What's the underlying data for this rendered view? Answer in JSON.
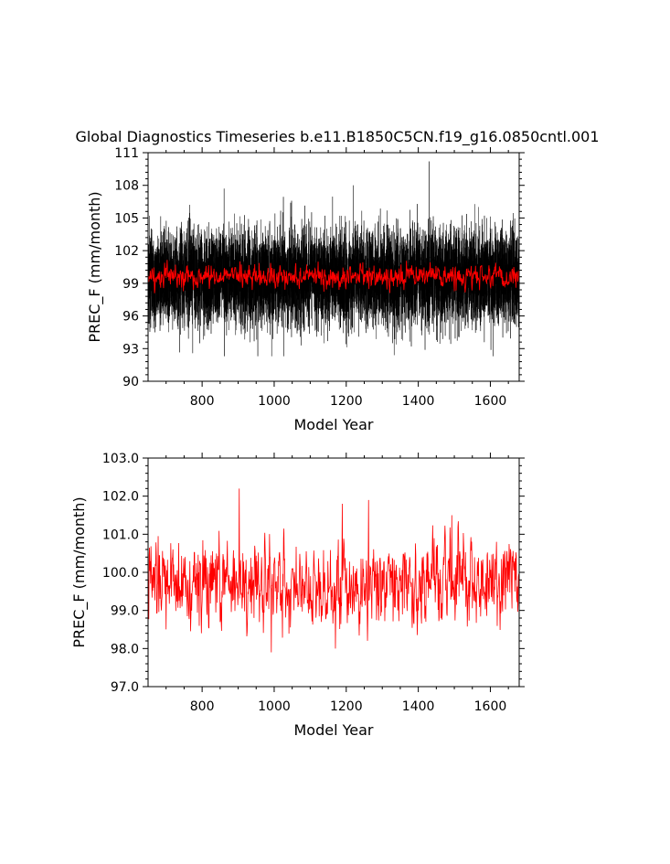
{
  "title": "Global Diagnostics Timeseries b.e11.B1850C5CN.f19_g16.0850cntl.001",
  "colors": {
    "monthly": "#000000",
    "annual": "#ff0000",
    "axes": "#000000"
  },
  "chart_data": [
    {
      "type": "line",
      "panel": "top",
      "xlabel": "Model Year",
      "ylabel": "PREC_F (mm/month)",
      "xlim": [
        650,
        1680
      ],
      "ylim": [
        90,
        111
      ],
      "xticks": [
        800,
        1000,
        1200,
        1400,
        1600
      ],
      "xtick_labels": [
        "800",
        "1000",
        "1200",
        "1400",
        "1600"
      ],
      "yticks": [
        90,
        93,
        96,
        99,
        102,
        105,
        108,
        111
      ],
      "ytick_labels": [
        "90",
        "93",
        "96",
        "99",
        "102",
        "105",
        "108",
        "111"
      ],
      "grid": false,
      "series": [
        {
          "color": "#000000",
          "resolution": "monthly",
          "x_start": 651,
          "x_end": 1680,
          "mean": 99.6,
          "typical_range": [
            94,
            105
          ],
          "min": 92.3,
          "max": 110.2,
          "peaks": [
            [
              861,
              107.7
            ],
            [
              1220,
              108.0
            ],
            [
              1430,
              110.2
            ]
          ],
          "troughs": [
            [
              862,
              92.3
            ],
            [
              993,
              92.3
            ],
            [
              1333,
              92.4
            ]
          ]
        },
        {
          "color": "#ff0000",
          "resolution": "annual",
          "x_start": 651,
          "x_end": 1680,
          "mean": 99.6,
          "typical_range": [
            98.3,
            101.0
          ]
        }
      ]
    },
    {
      "type": "line",
      "panel": "bottom",
      "xlabel": "Model Year",
      "ylabel": "PREC_F (mm/month)",
      "xlim": [
        650,
        1680
      ],
      "ylim": [
        97.0,
        103.0
      ],
      "xticks": [
        800,
        1000,
        1200,
        1400,
        1600
      ],
      "xtick_labels": [
        "800",
        "1000",
        "1200",
        "1400",
        "1600"
      ],
      "yticks": [
        97.0,
        98.0,
        99.0,
        100.0,
        101.0,
        102.0,
        103.0
      ],
      "ytick_labels": [
        "97.0",
        "98.0",
        "99.0",
        "100.0",
        "101.0",
        "102.0",
        "103.0"
      ],
      "grid": false,
      "series": [
        {
          "color": "#ff0000",
          "resolution": "annual",
          "x_start": 651,
          "x_end": 1680,
          "mean": 99.7,
          "typical_range": [
            98.3,
            101.2
          ],
          "min": 97.9,
          "max": 102.2,
          "peaks": [
            [
              903,
              102.2
            ],
            [
              1262,
              101.9
            ],
            [
              1189,
              101.8
            ],
            [
              1493,
              101.5
            ]
          ],
          "troughs": [
            [
              992,
              97.9
            ],
            [
              1170,
              98.0
            ]
          ]
        }
      ]
    }
  ]
}
